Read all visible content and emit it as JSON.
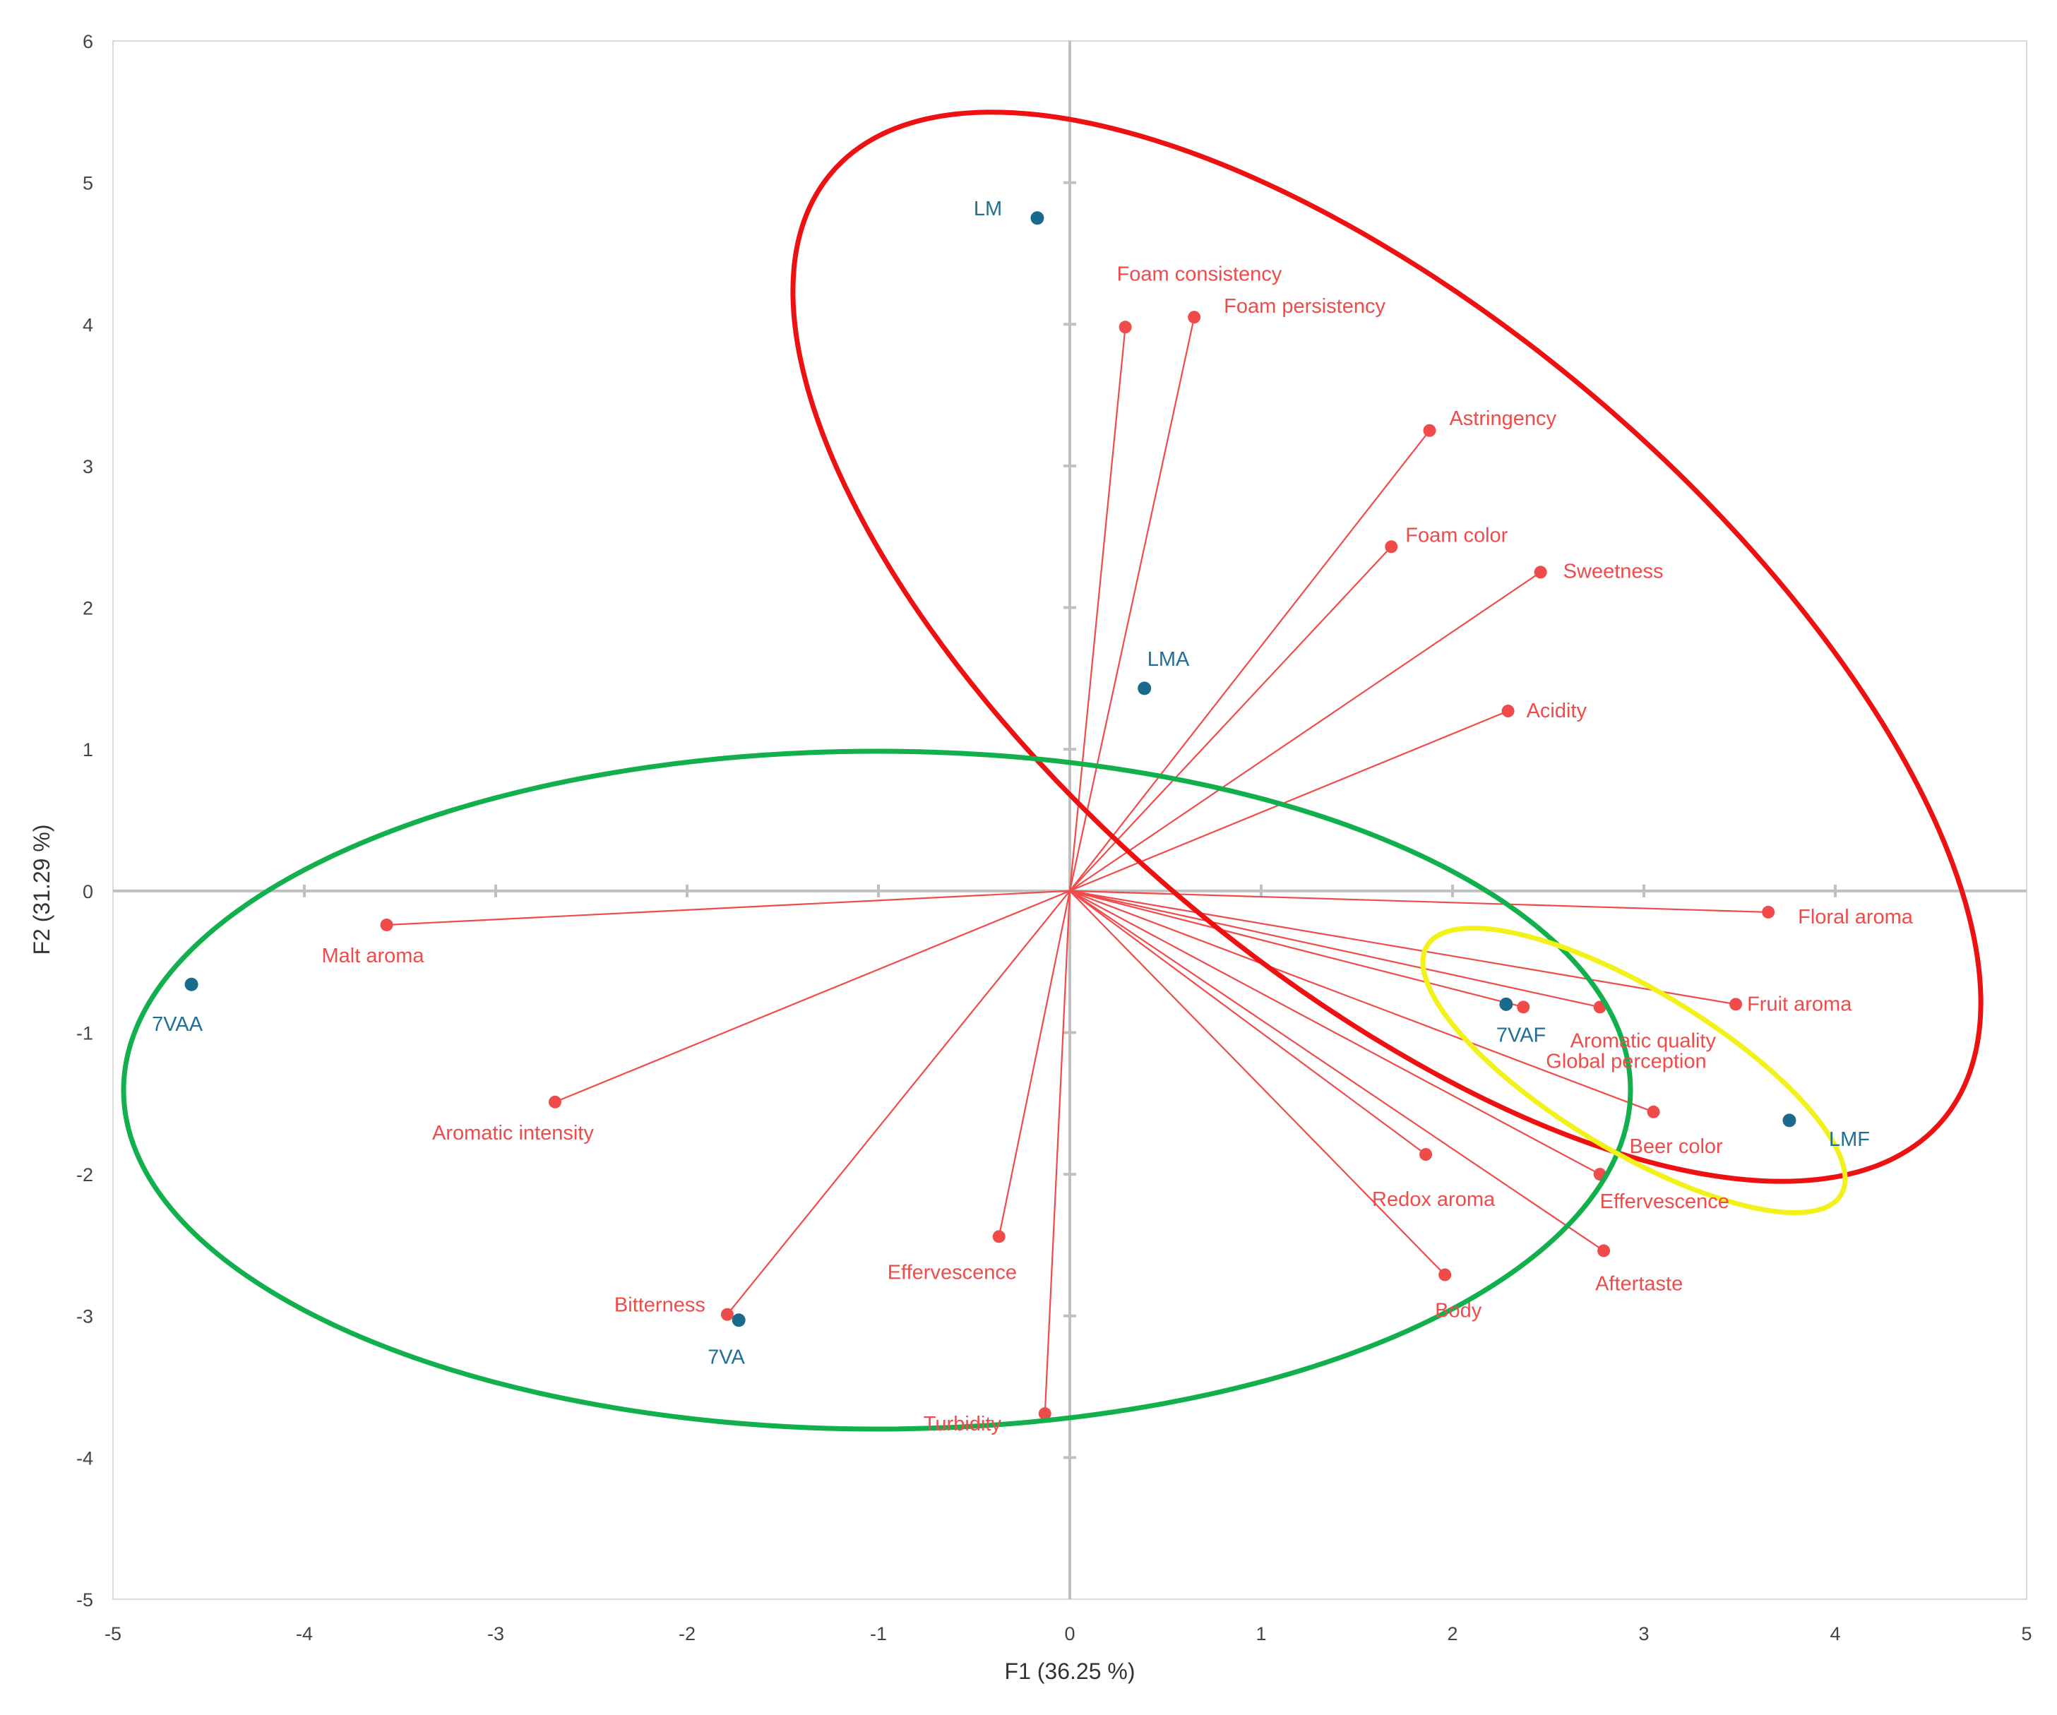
{
  "chart_data": {
    "type": "scatter",
    "subtype": "pca-biplot",
    "title": "",
    "xlabel": "F1 (36.25 %)",
    "ylabel": "F2 (31.29 %)",
    "xlim": [
      -5,
      5
    ],
    "ylim": [
      -5,
      6
    ],
    "xticks": [
      -5,
      -4,
      -3,
      -2,
      -1,
      0,
      1,
      2,
      3,
      4,
      5
    ],
    "yticks": [
      -5,
      -4,
      -3,
      -2,
      -1,
      0,
      1,
      2,
      3,
      4,
      5,
      6
    ],
    "grid": false,
    "legend": "none",
    "colors": {
      "variables": "#f04b4b",
      "variable_text": "#f04b4b",
      "observations": "#1a6a8c",
      "observation_text": "#1f6f95",
      "axes": "#c0c0c0",
      "frame": "#d9d9d9",
      "ellipse_red": "#ee1111",
      "ellipse_green": "#12b04c",
      "ellipse_yellow": "#f2f21a"
    },
    "variables": [
      {
        "label": "Foam consistency",
        "x": 0.29,
        "y": 3.98
      },
      {
        "label": "Foam persistency",
        "x": 0.65,
        "y": 4.05
      },
      {
        "label": "Astringency",
        "x": 1.88,
        "y": 3.25
      },
      {
        "label": "Foam color",
        "x": 1.68,
        "y": 2.43
      },
      {
        "label": "Sweetness",
        "x": 2.46,
        "y": 2.25
      },
      {
        "label": "Acidity",
        "x": 2.29,
        "y": 1.27
      },
      {
        "label": "Floral aroma",
        "x": 3.65,
        "y": -0.15
      },
      {
        "label": "Fruit aroma",
        "x": 3.48,
        "y": -0.8
      },
      {
        "label": "Aromatic quality",
        "x": 2.77,
        "y": -0.82
      },
      {
        "label": "Global perception",
        "x": 2.37,
        "y": -0.82
      },
      {
        "label": "Beer color",
        "x": 3.05,
        "y": -1.56
      },
      {
        "label": "Effervescence",
        "x": 2.77,
        "y": -2.0
      },
      {
        "label": "Redox aroma",
        "x": 1.86,
        "y": -1.86
      },
      {
        "label": "Aftertaste",
        "x": 2.79,
        "y": -2.54
      },
      {
        "label": "Body",
        "x": 1.96,
        "y": -2.71
      },
      {
        "label": "Effervescence",
        "x": -0.37,
        "y": -2.44
      },
      {
        "label": "Turbidity",
        "x": -0.13,
        "y": -3.69
      },
      {
        "label": "Bitterness",
        "x": -1.79,
        "y": -2.99
      },
      {
        "label": "Aromatic intensity",
        "x": -2.69,
        "y": -1.49
      },
      {
        "label": "Malt aroma",
        "x": -3.57,
        "y": -0.24
      }
    ],
    "observations": [
      {
        "label": "LM",
        "x": -0.17,
        "y": 4.75
      },
      {
        "label": "LMA",
        "x": 0.39,
        "y": 1.43
      },
      {
        "label": "7VAF",
        "x": 2.28,
        "y": -0.8
      },
      {
        "label": "LMF",
        "x": 3.76,
        "y": -1.62
      },
      {
        "label": "7VA",
        "x": -1.73,
        "y": -3.03
      },
      {
        "label": "7VAA",
        "x": -4.59,
        "y": -0.66
      }
    ],
    "groups": [
      {
        "color": "red",
        "members": [
          "LM",
          "LMA",
          "LMF"
        ]
      },
      {
        "color": "green",
        "members": [
          "7VAA",
          "7VA"
        ]
      },
      {
        "color": "yellow",
        "members": [
          "7VAF"
        ]
      }
    ]
  }
}
